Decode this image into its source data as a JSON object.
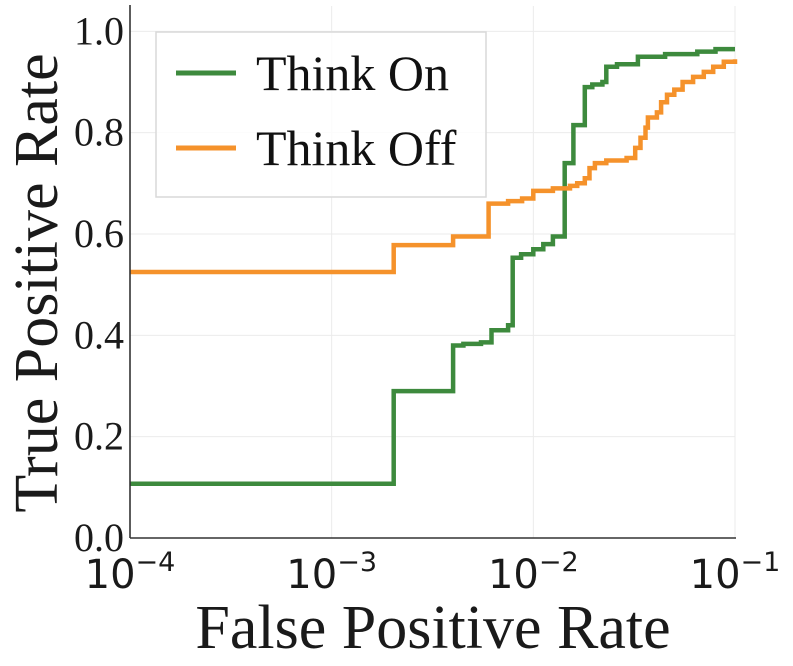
{
  "chart_data": {
    "type": "line",
    "title": "",
    "xlabel": "False Positive Rate",
    "ylabel": "True Positive Rate",
    "xscale": "log",
    "xlim": [
      0.0001,
      0.1
    ],
    "ylim": [
      0.0,
      1.05
    ],
    "grid": true,
    "legend_position": "top-left",
    "x_ticks": [
      {
        "value": 0.0001,
        "base": "10",
        "exp": "−4"
      },
      {
        "value": 0.001,
        "base": "10",
        "exp": "−3"
      },
      {
        "value": 0.01,
        "base": "10",
        "exp": "−2"
      },
      {
        "value": 0.1,
        "base": "10",
        "exp": "−1"
      }
    ],
    "y_ticks": [
      {
        "value": 0.0,
        "label": "0.0"
      },
      {
        "value": 0.2,
        "label": "0.2"
      },
      {
        "value": 0.4,
        "label": "0.4"
      },
      {
        "value": 0.6,
        "label": "0.6"
      },
      {
        "value": 0.8,
        "label": "0.8"
      },
      {
        "value": 1.0,
        "label": "1.0"
      }
    ],
    "series": [
      {
        "name": "Think On",
        "color": "#3d8a3d",
        "steps": [
          [
            0.0001,
            0.107
          ],
          [
            0.00203,
            0.29
          ],
          [
            0.004,
            0.38
          ],
          [
            0.0045,
            0.383
          ],
          [
            0.0055,
            0.386
          ],
          [
            0.0062,
            0.41
          ],
          [
            0.0075,
            0.42
          ],
          [
            0.0079,
            0.553
          ],
          [
            0.0087,
            0.56
          ],
          [
            0.01,
            0.57
          ],
          [
            0.0112,
            0.58
          ],
          [
            0.0125,
            0.595
          ],
          [
            0.0143,
            0.74
          ],
          [
            0.0158,
            0.815
          ],
          [
            0.018,
            0.89
          ],
          [
            0.0196,
            0.895
          ],
          [
            0.022,
            0.9
          ],
          [
            0.023,
            0.93
          ],
          [
            0.026,
            0.935
          ],
          [
            0.033,
            0.95
          ],
          [
            0.045,
            0.955
          ],
          [
            0.065,
            0.96
          ],
          [
            0.08,
            0.965
          ],
          [
            0.1,
            0.965
          ]
        ]
      },
      {
        "name": "Think Off",
        "color": "#f5922b",
        "steps": [
          [
            0.0001,
            0.525
          ],
          [
            0.00203,
            0.578
          ],
          [
            0.004,
            0.595
          ],
          [
            0.006,
            0.66
          ],
          [
            0.0075,
            0.665
          ],
          [
            0.0088,
            0.67
          ],
          [
            0.01,
            0.685
          ],
          [
            0.0125,
            0.69
          ],
          [
            0.0152,
            0.695
          ],
          [
            0.0165,
            0.7
          ],
          [
            0.018,
            0.71
          ],
          [
            0.019,
            0.73
          ],
          [
            0.0202,
            0.74
          ],
          [
            0.023,
            0.745
          ],
          [
            0.029,
            0.75
          ],
          [
            0.032,
            0.77
          ],
          [
            0.034,
            0.79
          ],
          [
            0.036,
            0.81
          ],
          [
            0.037,
            0.83
          ],
          [
            0.041,
            0.84
          ],
          [
            0.043,
            0.86
          ],
          [
            0.046,
            0.875
          ],
          [
            0.05,
            0.885
          ],
          [
            0.055,
            0.9
          ],
          [
            0.062,
            0.91
          ],
          [
            0.07,
            0.92
          ],
          [
            0.078,
            0.93
          ],
          [
            0.088,
            0.94
          ],
          [
            0.1,
            0.945
          ]
        ]
      }
    ]
  }
}
